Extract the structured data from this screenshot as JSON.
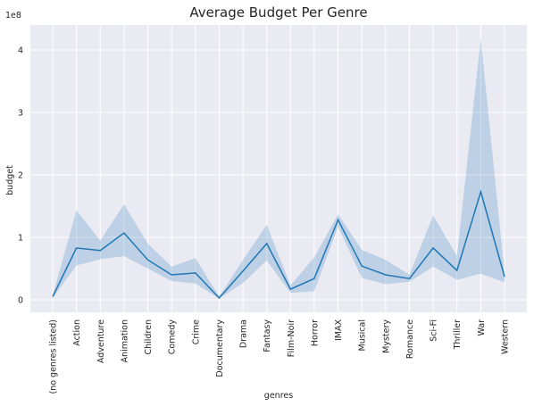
{
  "chart_data": {
    "type": "line",
    "title": "Average Budget Per Genre",
    "xlabel": "genres",
    "ylabel": "budget",
    "y_offset_text": "1e8",
    "categories": [
      "(no genres listed)",
      "Action",
      "Adventure",
      "Animation",
      "Children",
      "Comedy",
      "Crime",
      "Documentary",
      "Drama",
      "Fantasy",
      "Film-Noir",
      "Horror",
      "IMAX",
      "Musical",
      "Mystery",
      "Romance",
      "Sci-Fi",
      "Thriller",
      "War",
      "Western"
    ],
    "yticks": [
      0,
      1,
      2,
      3,
      4
    ],
    "ylim": [
      -0.2,
      4.4
    ],
    "series": [
      {
        "values": [
          0.05,
          0.83,
          0.79,
          1.07,
          0.64,
          0.4,
          0.43,
          0.03,
          0.46,
          0.9,
          0.17,
          0.34,
          1.28,
          0.54,
          0.4,
          0.34,
          0.83,
          0.47,
          1.73,
          0.37
        ],
        "ci_low": [
          0.03,
          0.55,
          0.65,
          0.7,
          0.5,
          0.3,
          0.26,
          0.02,
          0.27,
          0.63,
          0.11,
          0.14,
          1.17,
          0.35,
          0.25,
          0.29,
          0.53,
          0.32,
          0.42,
          0.28
        ],
        "ci_high": [
          0.07,
          1.43,
          0.95,
          1.53,
          0.9,
          0.53,
          0.67,
          0.05,
          0.64,
          1.2,
          0.23,
          0.68,
          1.37,
          0.8,
          0.64,
          0.4,
          1.35,
          0.7,
          4.18,
          0.43
        ]
      }
    ],
    "grid": true,
    "colors": {
      "line": "#1f77b4",
      "band": "#1f77b4",
      "background": "#eaeaf2"
    }
  }
}
